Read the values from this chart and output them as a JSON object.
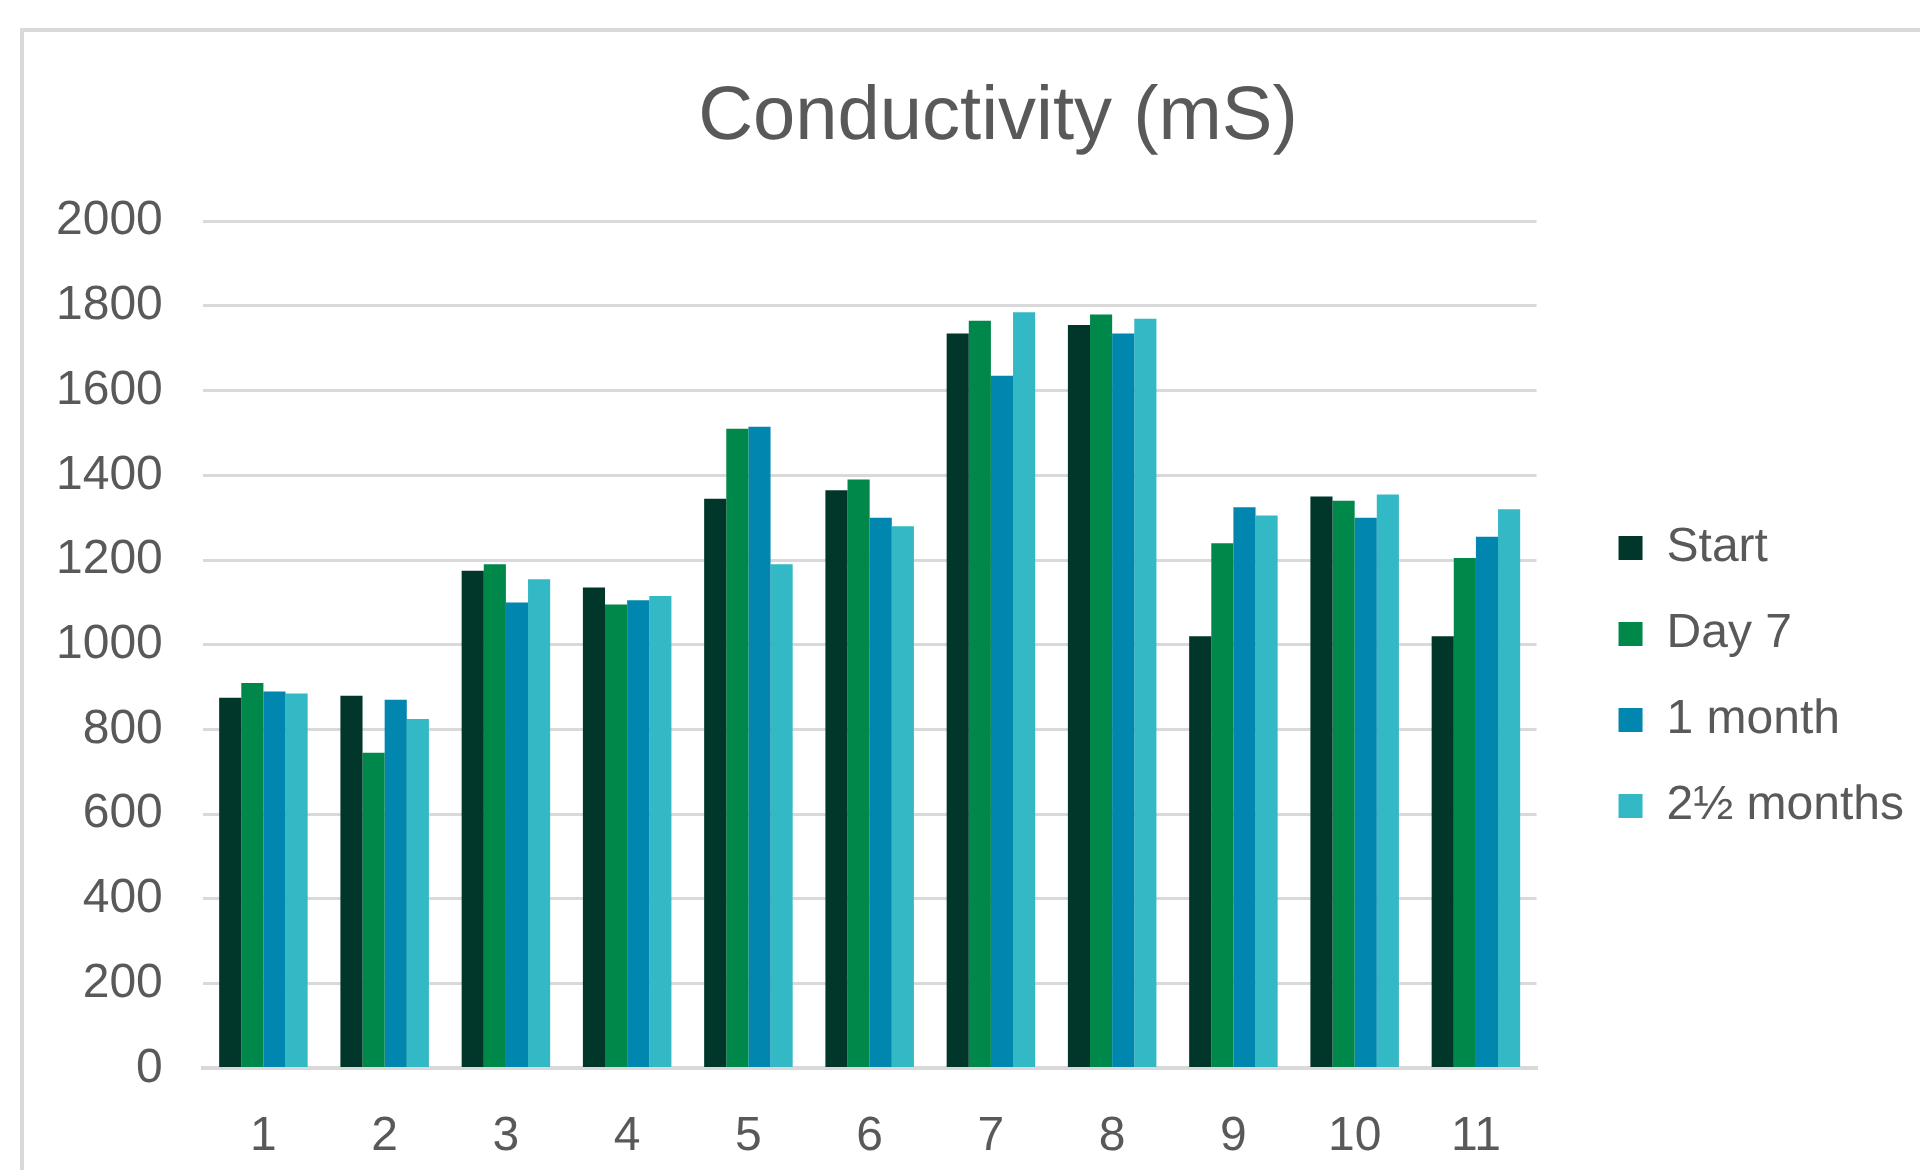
{
  "chart_data": {
    "type": "bar",
    "title": "Conductivity (mS)",
    "categories": [
      "1",
      "2",
      "3",
      "4",
      "5",
      "6",
      "7",
      "8",
      "9",
      "10",
      "11"
    ],
    "series": [
      {
        "name": "Start",
        "color": "#00372a",
        "values": [
          875,
          880,
          1175,
          1135,
          1345,
          1365,
          1735,
          1755,
          1020,
          1350,
          1020
        ]
      },
      {
        "name": "Day 7",
        "color": "#00884b",
        "values": [
          910,
          745,
          1190,
          1095,
          1510,
          1390,
          1765,
          1780,
          1240,
          1340,
          1205
        ]
      },
      {
        "name": "1 month",
        "color": "#0086af",
        "values": [
          890,
          870,
          1100,
          1105,
          1515,
          1300,
          1635,
          1735,
          1325,
          1300,
          1255
        ]
      },
      {
        "name": "2½ months",
        "color": "#33b8c5",
        "values": [
          885,
          825,
          1155,
          1115,
          1190,
          1280,
          1785,
          1770,
          1305,
          1355,
          1320
        ]
      }
    ],
    "ylim": [
      0,
      2000
    ],
    "yticks": [
      0,
      200,
      400,
      600,
      800,
      1000,
      1200,
      1400,
      1600,
      1800,
      2000
    ],
    "grid": "y",
    "legend": "right"
  }
}
